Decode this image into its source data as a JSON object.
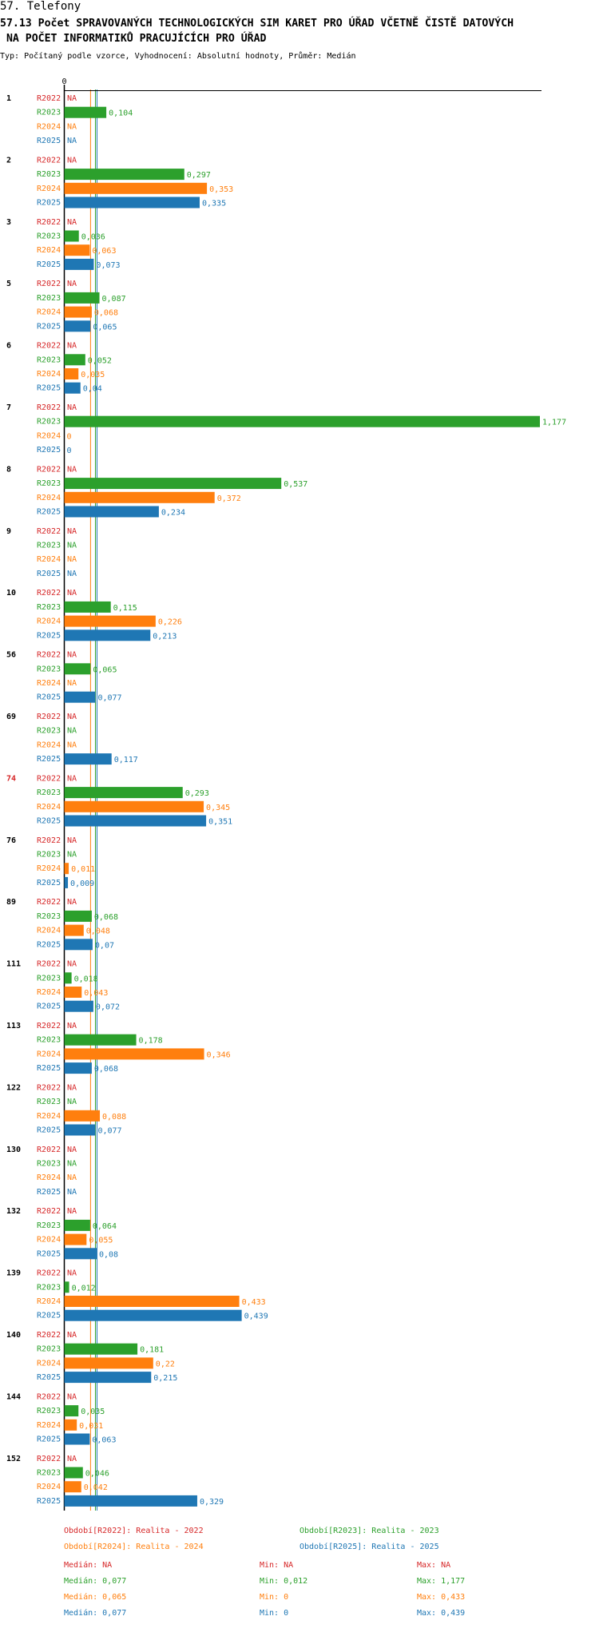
{
  "header": {
    "title": "57. Telefony",
    "subtitle_line1": "57.13 Počet SPRAVOVANÝCH TECHNOLOGICKÝCH SIM KARET PRO ÚŘAD VČETNĚ ČISTĚ DATOVÝCH",
    "subtitle_line2": " NA POČET INFORMATIKŮ PRACUJÍCÍCH PRO ÚŘAD",
    "meta": "Typ: Počítaný podle vzorce, Vyhodnocení: Absolutní hodnoty, Průměr: Medián"
  },
  "chart_data": {
    "type": "bar",
    "orientation": "horizontal",
    "axis_zero_label": "0",
    "xlim": [
      0,
      1.177
    ],
    "highlight_category": "74",
    "categories": [
      "1",
      "2",
      "3",
      "5",
      "6",
      "7",
      "8",
      "9",
      "10",
      "56",
      "69",
      "74",
      "76",
      "89",
      "111",
      "113",
      "122",
      "130",
      "132",
      "139",
      "140",
      "144",
      "152"
    ],
    "series": [
      {
        "name": "R2022",
        "color": "#d62728",
        "values": [
          null,
          null,
          null,
          null,
          null,
          null,
          null,
          null,
          null,
          null,
          null,
          null,
          null,
          null,
          null,
          null,
          null,
          null,
          null,
          null,
          null,
          null,
          null
        ],
        "labels": [
          "NA",
          "NA",
          "NA",
          "NA",
          "NA",
          "NA",
          "NA",
          "NA",
          "NA",
          "NA",
          "NA",
          "NA",
          "NA",
          "NA",
          "NA",
          "NA",
          "NA",
          "NA",
          "NA",
          "NA",
          "NA",
          "NA",
          "NA"
        ]
      },
      {
        "name": "R2023",
        "color": "#2ca02c",
        "values": [
          0.104,
          0.297,
          0.036,
          0.087,
          0.052,
          1.177,
          0.537,
          null,
          0.115,
          0.065,
          null,
          0.293,
          null,
          0.068,
          0.018,
          0.178,
          null,
          null,
          0.064,
          0.012,
          0.181,
          0.035,
          0.046
        ],
        "labels": [
          "0,104",
          "0,297",
          "0,036",
          "0,087",
          "0,052",
          "1,177",
          "0,537",
          "NA",
          "0,115",
          "0,065",
          "NA",
          "0,293",
          "NA",
          "0,068",
          "0,018",
          "0,178",
          "NA",
          "NA",
          "0,064",
          "0,012",
          "0,181",
          "0,035",
          "0,046"
        ]
      },
      {
        "name": "R2024",
        "color": "#ff7f0e",
        "values": [
          null,
          0.353,
          0.063,
          0.068,
          0.035,
          0,
          0.372,
          null,
          0.226,
          null,
          null,
          0.345,
          0.011,
          0.048,
          0.043,
          0.346,
          0.088,
          null,
          0.055,
          0.433,
          0.22,
          0.031,
          0.042
        ],
        "labels": [
          "NA",
          "0,353",
          "0,063",
          "0,068",
          "0,035",
          "0",
          "0,372",
          "NA",
          "0,226",
          "NA",
          "NA",
          "0,345",
          "0,011",
          "0,048",
          "0,043",
          "0,346",
          "0,088",
          "NA",
          "0,055",
          "0,433",
          "0,22",
          "0,031",
          "0,042"
        ]
      },
      {
        "name": "R2025",
        "color": "#1f77b4",
        "values": [
          null,
          0.335,
          0.073,
          0.065,
          0.04,
          0,
          0.234,
          null,
          0.213,
          0.077,
          0.117,
          0.351,
          0.009,
          0.07,
          0.072,
          0.068,
          0.077,
          null,
          0.08,
          0.439,
          0.215,
          0.063,
          0.329
        ],
        "labels": [
          "NA",
          "0,335",
          "0,073",
          "0,065",
          "0,04",
          "0",
          "0,234",
          "NA",
          "0,213",
          "0,077",
          "0,117",
          "0,351",
          "0,009",
          "0,07",
          "0,072",
          "0,068",
          "0,077",
          "NA",
          "0,08",
          "0,439",
          "0,215",
          "0,063",
          "0,329"
        ]
      }
    ],
    "reference_lines": [
      {
        "value": 0.065,
        "color": "#ff7f0e"
      },
      {
        "value": 0.077,
        "color": "#2ca02c"
      },
      {
        "value": 0.077,
        "color": "#1f77b4"
      }
    ],
    "legend": {
      "entries": [
        {
          "text": "Období[R2022]: Realita - 2022",
          "color": "#d62728"
        },
        {
          "text": "Období[R2023]: Realita - 2023",
          "color": "#2ca02c"
        },
        {
          "text": "Období[R2024]: Realita - 2024",
          "color": "#ff7f0e"
        },
        {
          "text": "Období[R2025]: Realita - 2025",
          "color": "#1f77b4"
        }
      ]
    },
    "stats": [
      {
        "color": "#d62728",
        "median": "Medián: NA",
        "min": "Min: NA",
        "max": "Max: NA"
      },
      {
        "color": "#2ca02c",
        "median": "Medián: 0,077",
        "min": "Min: 0,012",
        "max": "Max: 1,177"
      },
      {
        "color": "#ff7f0e",
        "median": "Medián: 0,065",
        "min": "Min: 0",
        "max": "Max: 0,433"
      },
      {
        "color": "#1f77b4",
        "median": "Medián: 0,077",
        "min": "Min: 0",
        "max": "Max: 0,439"
      }
    ]
  }
}
